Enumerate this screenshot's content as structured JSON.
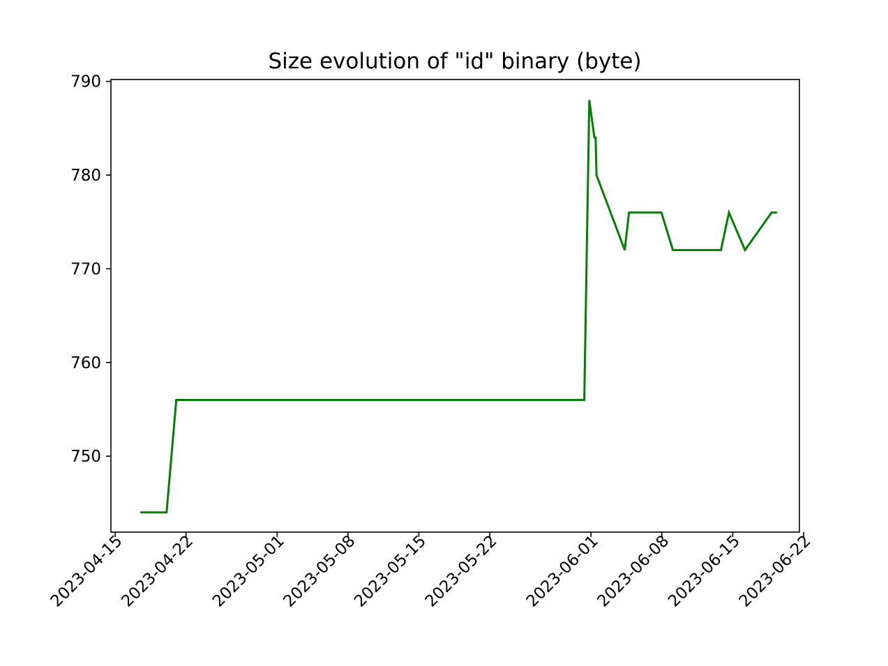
{
  "chart_data": {
    "type": "line",
    "title": "Size evolution of \"id\" binary (byte)",
    "xlabel": "",
    "ylabel": "",
    "xlim": [
      "2023-04-14T14:00",
      "2023-06-21T14:00"
    ],
    "ylim": [
      741.9,
      790.2
    ],
    "x_ticks": [
      "2023-04-15",
      "2023-04-22",
      "2023-05-01",
      "2023-05-08",
      "2023-05-15",
      "2023-05-22",
      "2023-06-01",
      "2023-06-08",
      "2023-06-15",
      "2023-06-22"
    ],
    "y_ticks": [
      750,
      760,
      770,
      780,
      790
    ],
    "grid": false,
    "legend": null,
    "series": [
      {
        "color": "#008000",
        "points": [
          [
            "2023-04-17T12:00",
            744
          ],
          [
            "2023-04-20T02:00",
            744
          ],
          [
            "2023-04-21T01:00",
            756
          ],
          [
            "2023-05-31T08:00",
            756
          ],
          [
            "2023-05-31T20:00",
            788
          ],
          [
            "2023-06-01T08:00",
            784
          ],
          [
            "2023-06-01T11:00",
            784
          ],
          [
            "2023-06-01T13:00",
            780
          ],
          [
            "2023-06-04T08:00",
            772
          ],
          [
            "2023-06-04T18:00",
            776
          ],
          [
            "2023-06-07T23:00",
            776
          ],
          [
            "2023-06-09T02:00",
            772
          ],
          [
            "2023-06-13T20:00",
            772
          ],
          [
            "2023-06-14T15:00",
            776
          ],
          [
            "2023-06-16T05:00",
            772
          ],
          [
            "2023-06-18T20:00",
            776
          ],
          [
            "2023-06-19T09:00",
            776
          ]
        ]
      }
    ]
  }
}
